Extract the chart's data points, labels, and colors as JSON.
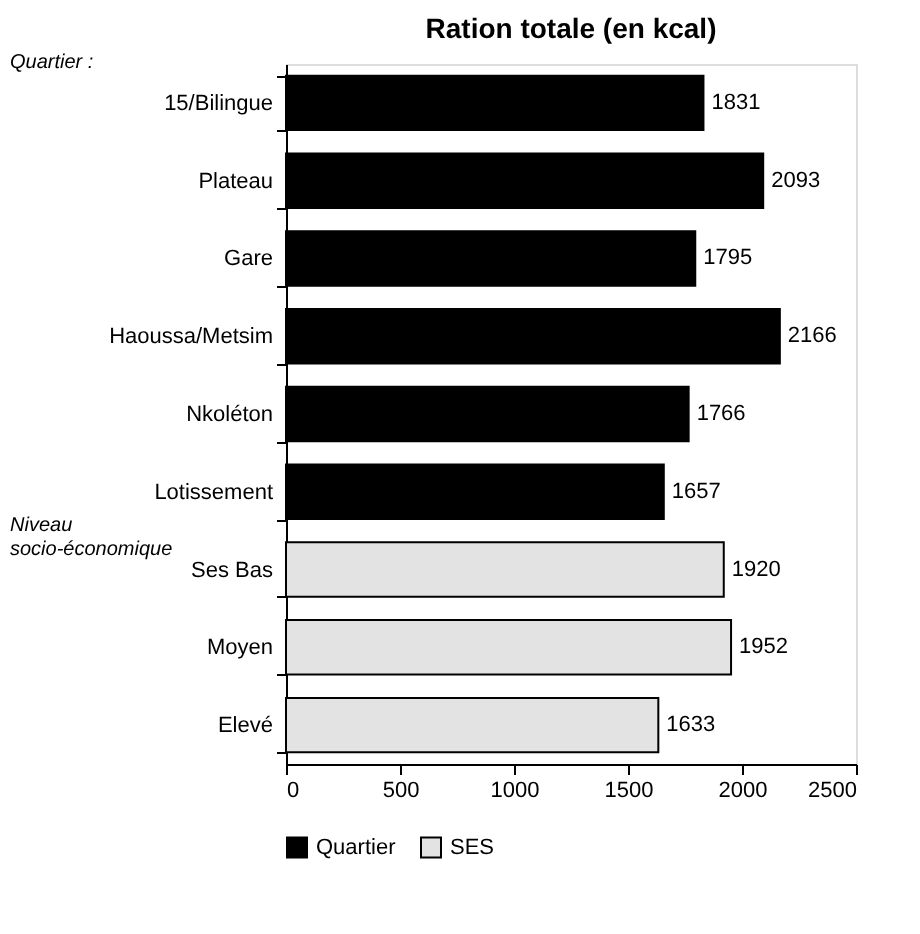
{
  "chart_data": {
    "type": "bar",
    "orientation": "horizontal",
    "title": "Ration totale (en kcal)",
    "categories": [
      "15/Bilingue",
      "Plateau",
      "Gare",
      "Haoussa/Metsim",
      "Nkoléton",
      "Lotissement",
      "Ses Bas",
      "Moyen",
      "Elevé"
    ],
    "series": [
      {
        "name": "Quartier",
        "color": "#000000",
        "values": [
          1831,
          2093,
          1795,
          2166,
          1766,
          1657,
          null,
          null,
          null
        ]
      },
      {
        "name": "SES",
        "color": "#e3e3e3",
        "values": [
          null,
          null,
          null,
          null,
          null,
          null,
          1920,
          1952,
          1633
        ]
      }
    ],
    "xlim": [
      0,
      2500
    ],
    "xticks": [
      0,
      500,
      1000,
      1500,
      2000,
      2500
    ],
    "data_labels": true,
    "legend": "bottom",
    "annotations": [
      "Quartier :",
      "Niveau socio-économique"
    ]
  }
}
